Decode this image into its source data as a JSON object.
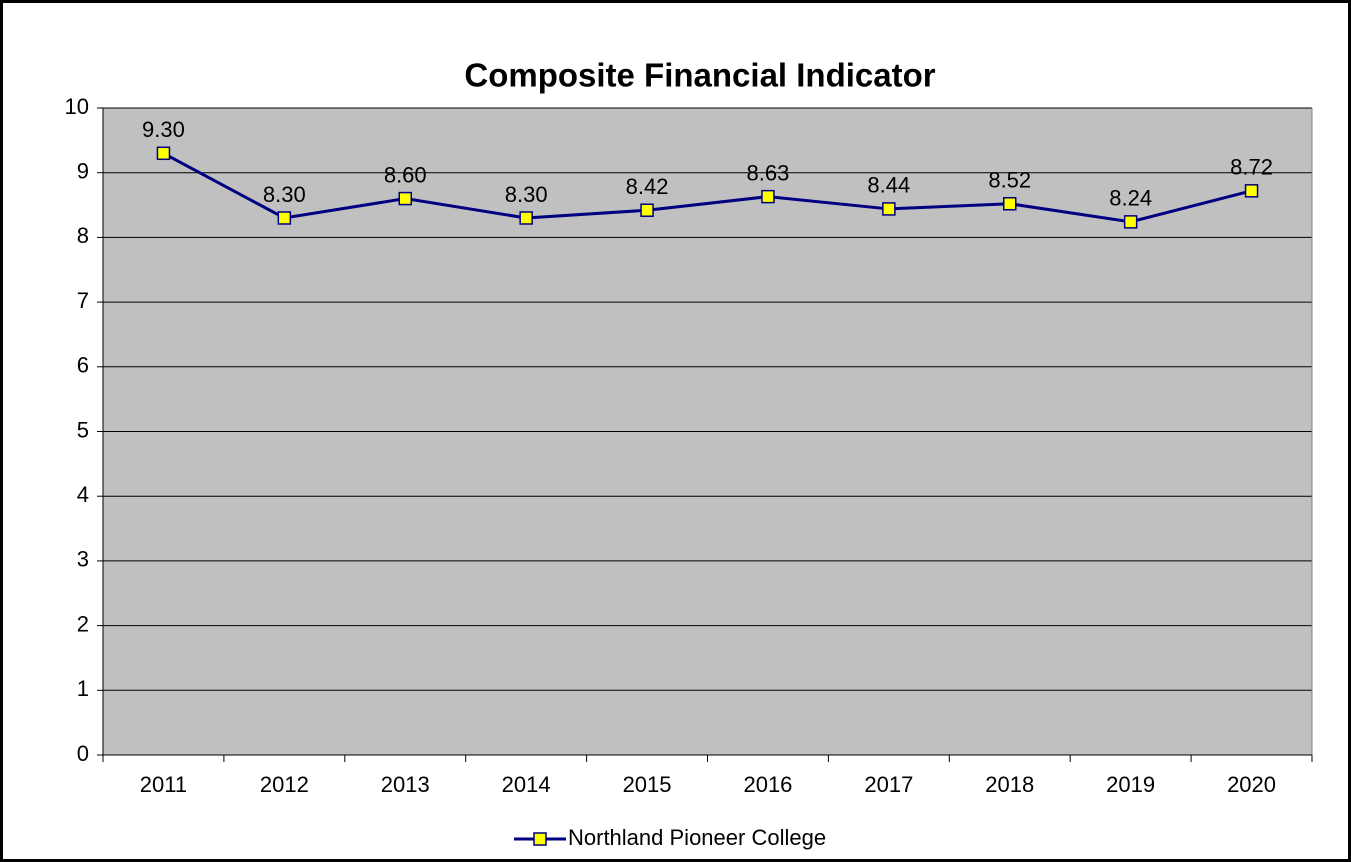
{
  "chart_data": {
    "type": "line",
    "title": "Composite Financial Indicator",
    "categories": [
      "2011",
      "2012",
      "2013",
      "2014",
      "2015",
      "2016",
      "2017",
      "2018",
      "2019",
      "2020"
    ],
    "series": [
      {
        "name": "Northland Pioneer College",
        "color": "#000080",
        "marker_color": "#ffff00",
        "values": [
          9.3,
          8.3,
          8.6,
          8.3,
          8.42,
          8.63,
          8.44,
          8.52,
          8.24,
          8.72
        ],
        "value_labels": [
          "9.30",
          "8.30",
          "8.60",
          "8.30",
          "8.42",
          "8.63",
          "8.44",
          "8.52",
          "8.24",
          "8.72"
        ]
      }
    ],
    "ylim": [
      0,
      10
    ],
    "yticks": [
      0,
      1,
      2,
      3,
      4,
      5,
      6,
      7,
      8,
      9,
      10
    ],
    "grid": true,
    "plot_background": "#c0c0c0",
    "legend": "bottom"
  }
}
